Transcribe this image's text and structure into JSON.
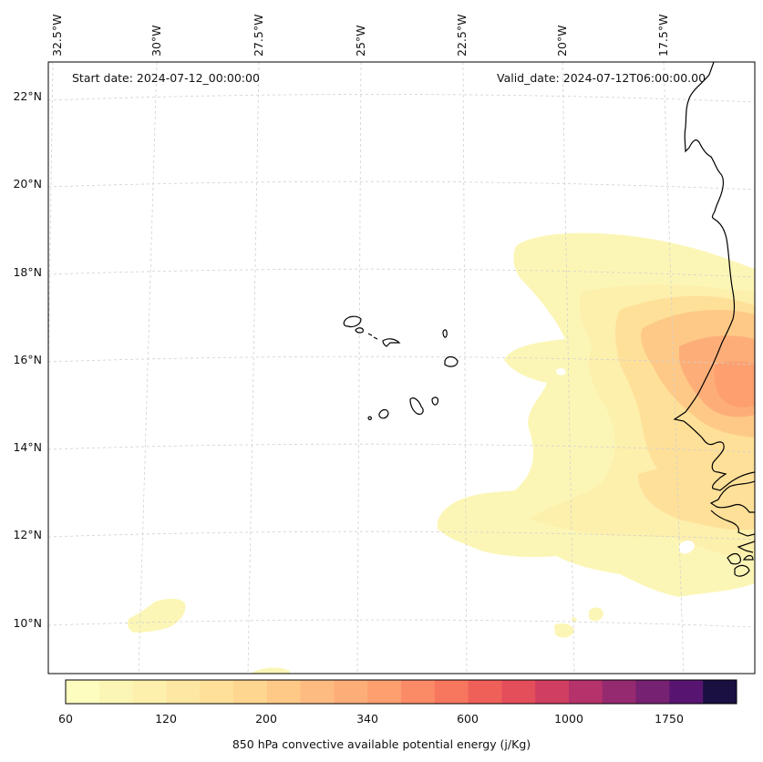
{
  "header": {
    "start_date": "Start date: 2024-07-12_00:00:00",
    "valid_date": "Valid_date: 2024-07-12T06:00:00.00"
  },
  "axes": {
    "longitude_labels": [
      "32.5°W",
      "30°W",
      "27.5°W",
      "25°W",
      "22.5°W",
      "20°W",
      "17.5°W"
    ],
    "latitude_labels": [
      "22°N",
      "20°N",
      "18°N",
      "16°N",
      "14°N",
      "12°N",
      "10°N"
    ]
  },
  "colorbar": {
    "title": "850 hPa convective available potential energy (j/Kg)",
    "tick_labels": [
      "60",
      "120",
      "200",
      "340",
      "600",
      "1000",
      "1750"
    ],
    "levels": [
      60,
      80,
      100,
      120,
      140,
      170,
      200,
      240,
      280,
      340,
      400,
      480,
      600,
      720,
      850,
      1000,
      1200,
      1450,
      1750,
      2100
    ],
    "colors": [
      "#fcfdbf",
      "#fcf6b6",
      "#fdefac",
      "#fde7a2",
      "#fee099",
      "#fed690",
      "#fec987",
      "#febb81",
      "#fdae78",
      "#fd9f6f",
      "#fb8b67",
      "#f7765e",
      "#ef6059",
      "#e44e5b",
      "#d03e62",
      "#b5326b",
      "#952a70",
      "#762171",
      "#571571",
      "#1a1042"
    ]
  },
  "legend_colors": {
    "coastline": "#000000",
    "gridline": "#cccccc",
    "frame": "#000000"
  }
}
